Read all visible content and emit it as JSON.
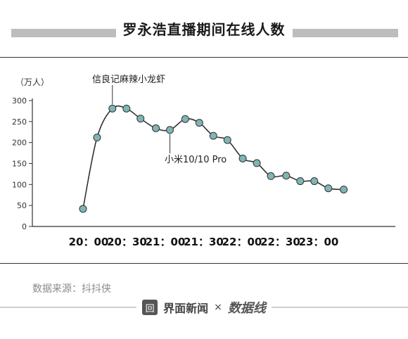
{
  "page": {
    "title": "罗永浩直播期间在线人数",
    "source": "数据来源：抖抖侠",
    "brand_name": "界面新闻",
    "brand_icon_glyph": "回",
    "times_sign": "×",
    "partner_logo": "数据线"
  },
  "chart_data": {
    "type": "line",
    "title": "罗永浩直播期间在线人数",
    "ylabel": "（万人）",
    "xlabel": "",
    "ylim": [
      0,
      300
    ],
    "yticks": [
      0,
      50,
      100,
      150,
      200,
      250,
      300
    ],
    "xtick_labels": [
      "20：00",
      "20：30",
      "21：00",
      "21：30",
      "22：00",
      "22：30",
      "23：00"
    ],
    "x_time_start": "20:00",
    "x_minutes": [
      0,
      11,
      23,
      34,
      45,
      57,
      68,
      80,
      91,
      102,
      113,
      125,
      136,
      147,
      159,
      170,
      181,
      192,
      204
    ],
    "values": [
      42,
      212,
      281,
      281,
      257,
      234,
      230,
      256,
      247,
      216,
      206,
      162,
      151,
      120,
      121,
      108,
      108,
      91,
      88
    ],
    "grid": false,
    "line_color": "#333333",
    "marker_color": "#7fb5b5",
    "annotations": [
      {
        "text": "信良记麻辣小龙虾",
        "point_index": 2
      },
      {
        "text": "小米10/10 Pro",
        "point_index": 6
      }
    ]
  }
}
